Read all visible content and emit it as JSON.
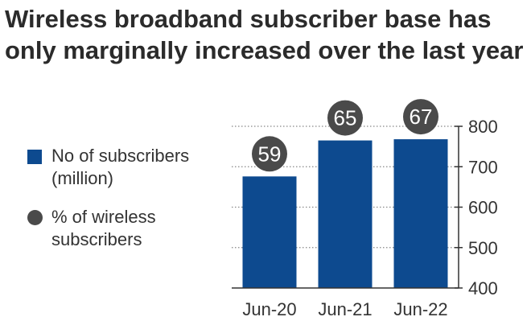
{
  "title": "Wireless broadband subscriber base has only marginally increased over the last year",
  "legend": {
    "bar_label": "No of subscribers (million)",
    "dot_label": "% of wireless subscribers"
  },
  "colors": {
    "bar": "#0d4a8f",
    "dot": "#4a4a4a",
    "grid": "#888888",
    "text": "#333333"
  },
  "chart_data": {
    "type": "bar",
    "categories": [
      "Jun-20",
      "Jun-21",
      "Jun-22"
    ],
    "series": [
      {
        "name": "No of subscribers (million)",
        "values": [
          676,
          765,
          768
        ]
      },
      {
        "name": "% of wireless subscribers",
        "values": [
          59,
          65,
          67
        ]
      }
    ],
    "ylim": [
      400,
      800
    ],
    "yticks": [
      400,
      500,
      600,
      700,
      800
    ],
    "y_axis_side": "right",
    "grid": true,
    "legend_position": "left"
  }
}
